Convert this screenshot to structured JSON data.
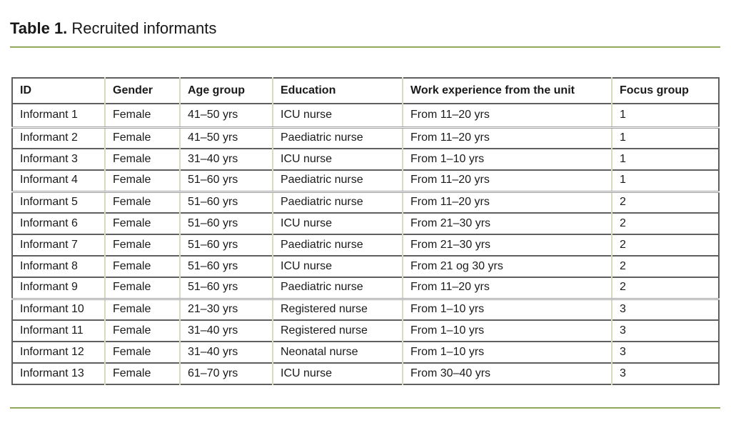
{
  "title": {
    "label": "Table 1.",
    "text": "Recruited informants"
  },
  "accent_colors": {
    "rule_green": "#78943a",
    "rule_green_light": "#aabf77",
    "cell_divider_green": "#d6ddbd",
    "row_divider_gray": "#9d9d9d",
    "outer_border_gray": "#5f5f5f"
  },
  "table": {
    "columns": [
      "ID",
      "Gender",
      "Age group",
      "Education",
      "Work experience from the unit",
      "Focus group"
    ],
    "rows": [
      [
        "Informant 1",
        "Female",
        "41–50 yrs",
        "ICU nurse",
        "From 11–20 yrs",
        "1"
      ],
      [
        "Informant 2",
        "Female",
        "41–50 yrs",
        "Paediatric nurse",
        "From 11–20 yrs",
        "1"
      ],
      [
        "Informant 3",
        "Female",
        "31–40 yrs",
        "ICU nurse",
        "From 1–10 yrs",
        "1"
      ],
      [
        "Informant 4",
        "Female",
        "51–60 yrs",
        "Paediatric nurse",
        "From 11–20 yrs",
        "1"
      ],
      [
        "Informant 5",
        "Female",
        "51–60 yrs",
        "Paediatric nurse",
        "From 11–20 yrs",
        "2"
      ],
      [
        "Informant 6",
        "Female",
        "51–60 yrs",
        "ICU nurse",
        "From 21–30 yrs",
        "2"
      ],
      [
        "Informant 7",
        "Female",
        "51–60 yrs",
        "Paediatric nurse",
        "From 21–30 yrs",
        "2"
      ],
      [
        "Informant 8",
        "Female",
        "51–60 yrs",
        "ICU nurse",
        "From 21 og 30 yrs",
        "2"
      ],
      [
        "Informant 9",
        "Female",
        "51–60 yrs",
        "Paediatric nurse",
        "From 11–20 yrs",
        "2"
      ],
      [
        "Informant 10",
        "Female",
        "21–30 yrs",
        "Registered nurse",
        "From 1–10 yrs",
        "3"
      ],
      [
        "Informant 11",
        "Female",
        "31–40 yrs",
        "Registered nurse",
        "From 1–10 yrs",
        "3"
      ],
      [
        "Informant 12",
        "Female",
        "31–40 yrs",
        "Neonatal nurse",
        "From 1–10 yrs",
        "3"
      ],
      [
        "Informant 13",
        "Female",
        "61–70 yrs",
        "ICU nurse",
        "From 30–40 yrs",
        "3"
      ]
    ]
  }
}
